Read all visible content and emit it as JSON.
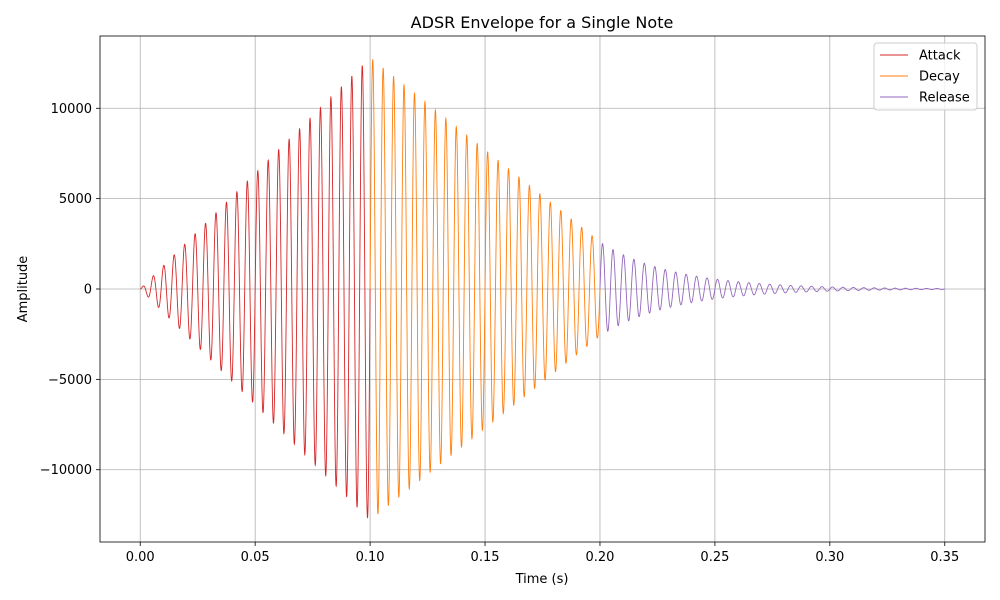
{
  "chart_data": {
    "type": "line",
    "title": "ADSR Envelope for a Single Note",
    "xlabel": "Time (s)",
    "ylabel": "Amplitude",
    "xlim": [
      -0.0175,
      0.3675
    ],
    "ylim": [
      -14000,
      14000
    ],
    "xticks": [
      0.0,
      0.05,
      0.1,
      0.15,
      0.2,
      0.25,
      0.3,
      0.35
    ],
    "xtick_labels": [
      "0.00",
      "0.05",
      "0.10",
      "0.15",
      "0.20",
      "0.25",
      "0.30",
      "0.35"
    ],
    "yticks": [
      -10000,
      -5000,
      0,
      5000,
      10000
    ],
    "ytick_labels": [
      "−10000",
      "−5000",
      "0",
      "5000",
      "10000"
    ],
    "grid": true,
    "legend_position": "top-right",
    "carrier_frequency_hz": 220,
    "series": [
      {
        "name": "Attack",
        "color": "#d62728",
        "x_range": [
          0.0,
          0.1
        ],
        "envelope": {
          "shape": "linear",
          "start": 0,
          "end": 12800
        }
      },
      {
        "name": "Decay",
        "color": "#ff7f0e",
        "x_range": [
          0.1,
          0.2
        ],
        "envelope": {
          "shape": "linear",
          "start": 12800,
          "end": 2600
        }
      },
      {
        "name": "Release",
        "color": "#9467bd",
        "x_range": [
          0.2,
          0.35
        ],
        "envelope": {
          "shape": "exponential",
          "start": 2600,
          "end": 25
        }
      }
    ]
  }
}
